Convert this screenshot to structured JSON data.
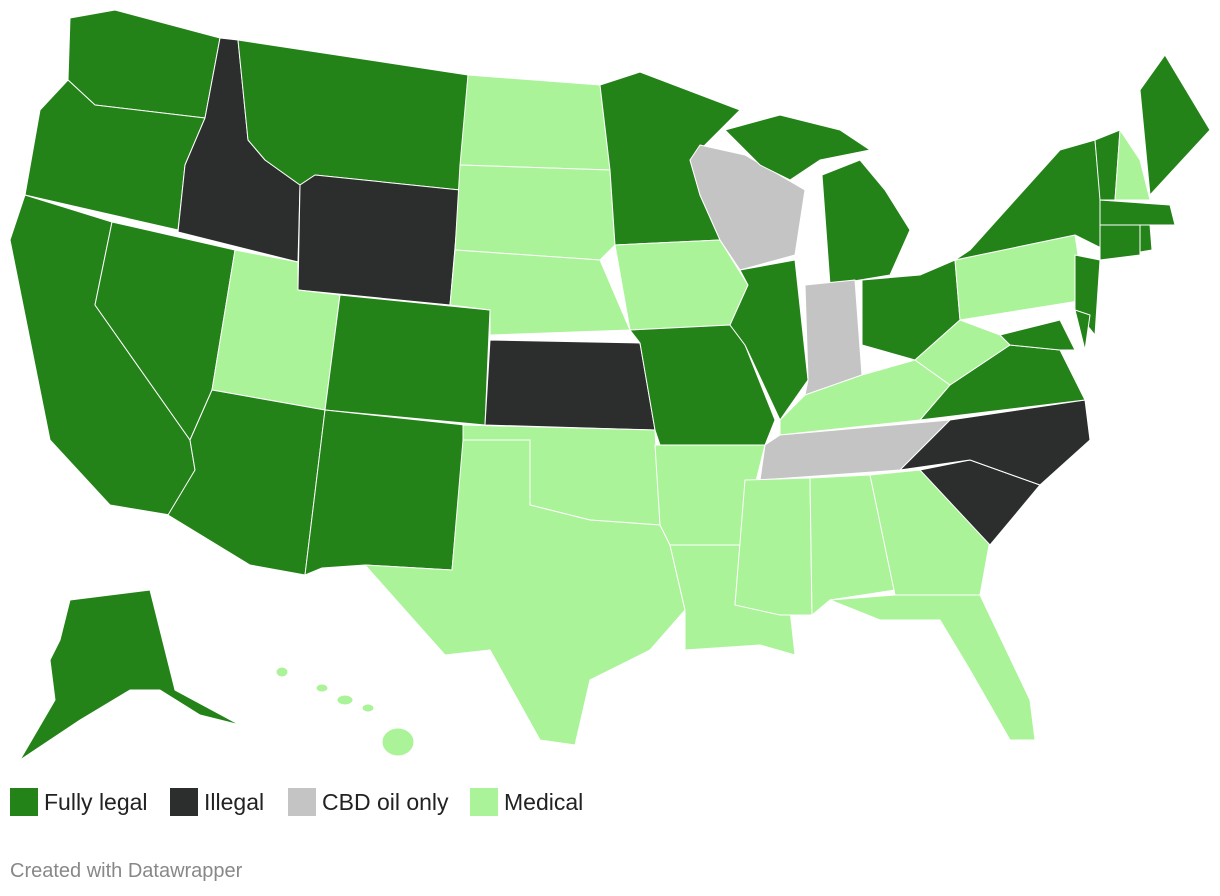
{
  "legend": [
    {
      "label": "Fully legal",
      "color": "#238318"
    },
    {
      "label": "Illegal",
      "color": "#2c2e2d"
    },
    {
      "label": "CBD oil only",
      "color": "#c4c4c4"
    },
    {
      "label": "Medical",
      "color": "#aaf398"
    }
  ],
  "footer": "Created with Datawrapper"
}
